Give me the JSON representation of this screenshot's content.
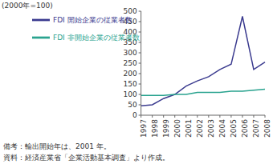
{
  "chart_data": {
    "type": "line",
    "y_label": "(2000年=100)",
    "categories": [
      "1997",
      "1998",
      "1999",
      "2000",
      "2001",
      "2002",
      "2003",
      "2004",
      "2005",
      "2006",
      "2007",
      "2008"
    ],
    "series": [
      {
        "name": "FDI 開始企業の従業者数",
        "color": "#3b3b8f",
        "values": [
          45,
          50,
          80,
          100,
          140,
          165,
          185,
          220,
          245,
          475,
          220,
          255
        ]
      },
      {
        "name": "FDI 非開始企業の従業者数",
        "color": "#2aa38f",
        "values": [
          95,
          95,
          95,
          100,
          100,
          110,
          110,
          110,
          115,
          115,
          120,
          125
        ]
      }
    ],
    "ylim": [
      0,
      500
    ],
    "yticks": [
      0,
      50,
      100,
      150,
      200,
      250,
      300,
      350,
      400,
      450,
      500
    ],
    "grid": false,
    "legend": "upper left",
    "marker": "none",
    "notes": [
      "備考：輸出開始年は、2001 年。",
      "資料：経済産業省「企業活動基本調査」より作成。"
    ]
  }
}
